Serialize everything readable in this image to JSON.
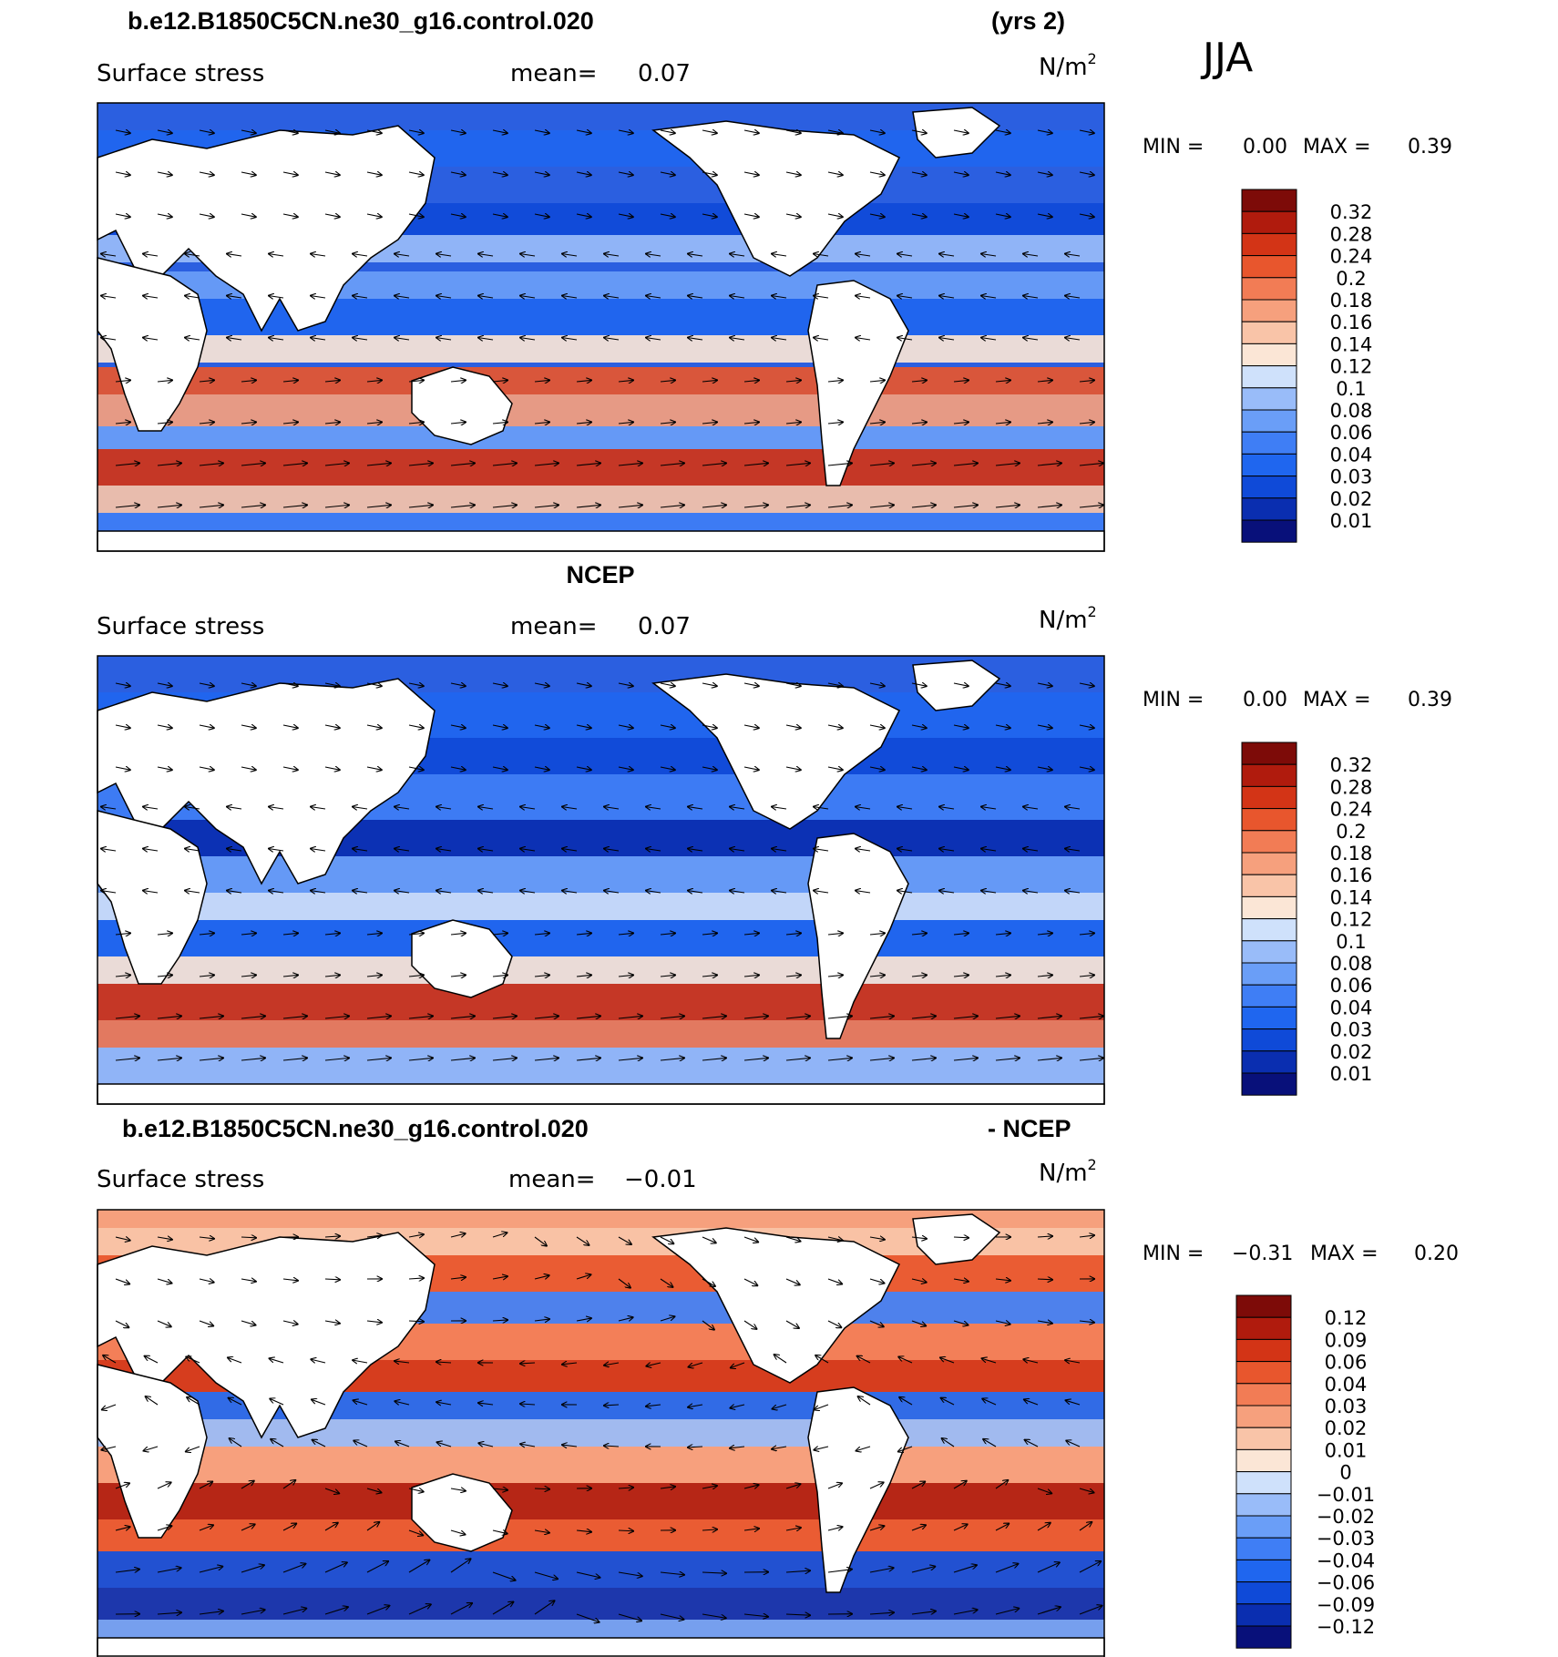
{
  "season": "JJA",
  "colors": {
    "diverging_16": [
      "#08107a",
      "#0a2eb0",
      "#0f4ad8",
      "#1f66ef",
      "#3f7ef5",
      "#6a9ef7",
      "#99bcf9",
      "#cfe1fb",
      "#fbe6d6",
      "#f9c4a8",
      "#f6a07d",
      "#f27c55",
      "#e8562d",
      "#d33416",
      "#b01b0d",
      "#7d0b08"
    ],
    "land": "#ffffff",
    "coast": "#000000"
  },
  "panels": [
    {
      "title_left": "b.e12.B1850C5CN.ne30_g16.control.020",
      "title_right": "(yrs 2)",
      "variable": "Surface stress",
      "mean_label": "mean=",
      "mean_value": "0.07",
      "units": "N/m",
      "units_sup": "2",
      "min_label": "MIN =",
      "min_value": "0.00",
      "max_label": "MAX =",
      "max_value": "0.39",
      "colorbar_labels": [
        "0.32",
        "0.28",
        "0.24",
        "0.2",
        "0.18",
        "0.16",
        "0.14",
        "0.12",
        "0.1",
        "0.08",
        "0.06",
        "0.04",
        "0.03",
        "0.02",
        "0.01"
      ]
    },
    {
      "title_left": "",
      "title_center": "NCEP",
      "title_right": "",
      "variable": "Surface stress",
      "mean_label": "mean=",
      "mean_value": "0.07",
      "units": "N/m",
      "units_sup": "2",
      "min_label": "MIN =",
      "min_value": "0.00",
      "max_label": "MAX =",
      "max_value": "0.39",
      "colorbar_labels": [
        "0.32",
        "0.28",
        "0.24",
        "0.2",
        "0.18",
        "0.16",
        "0.14",
        "0.12",
        "0.1",
        "0.08",
        "0.06",
        "0.04",
        "0.03",
        "0.02",
        "0.01"
      ]
    },
    {
      "title_left": "b.e12.B1850C5CN.ne30_g16.control.020",
      "title_right": "- NCEP",
      "variable": "Surface stress",
      "mean_label": "mean=",
      "mean_value": "−0.01",
      "units": "N/m",
      "units_sup": "2",
      "min_label": "MIN =",
      "min_value": "−0.31",
      "max_label": "MAX =",
      "max_value": "0.20",
      "colorbar_labels": [
        "0.12",
        "0.09",
        "0.06",
        "0.04",
        "0.03",
        "0.02",
        "0.01",
        "0",
        "−0.01",
        "−0.02",
        "−0.03",
        "−0.04",
        "−0.06",
        "−0.09",
        "−0.12"
      ]
    }
  ],
  "chart_data": [
    {
      "type": "heatmap",
      "title": "b.e12.B1850C5CN.ne30_g16.control.020 (yrs 2)",
      "variable": "Surface stress",
      "units": "N/m2",
      "season": "JJA",
      "mean": 0.07,
      "min": 0.0,
      "max": 0.39,
      "levels": [
        0.01,
        0.02,
        0.03,
        0.04,
        0.06,
        0.08,
        0.1,
        0.12,
        0.14,
        0.16,
        0.18,
        0.2,
        0.24,
        0.28,
        0.32
      ],
      "overlay": "vectors"
    },
    {
      "type": "heatmap",
      "title": "NCEP",
      "variable": "Surface stress",
      "units": "N/m2",
      "season": "JJA",
      "mean": 0.07,
      "min": 0.0,
      "max": 0.39,
      "levels": [
        0.01,
        0.02,
        0.03,
        0.04,
        0.06,
        0.08,
        0.1,
        0.12,
        0.14,
        0.16,
        0.18,
        0.2,
        0.24,
        0.28,
        0.32
      ],
      "overlay": "vectors"
    },
    {
      "type": "heatmap",
      "title": "b.e12.B1850C5CN.ne30_g16.control.020 - NCEP",
      "variable": "Surface stress",
      "units": "N/m2",
      "season": "JJA",
      "mean": -0.01,
      "min": -0.31,
      "max": 0.2,
      "levels": [
        -0.12,
        -0.09,
        -0.06,
        -0.04,
        -0.03,
        -0.02,
        -0.01,
        0,
        0.01,
        0.02,
        0.03,
        0.04,
        0.06,
        0.09,
        0.12
      ],
      "overlay": "vectors"
    }
  ]
}
